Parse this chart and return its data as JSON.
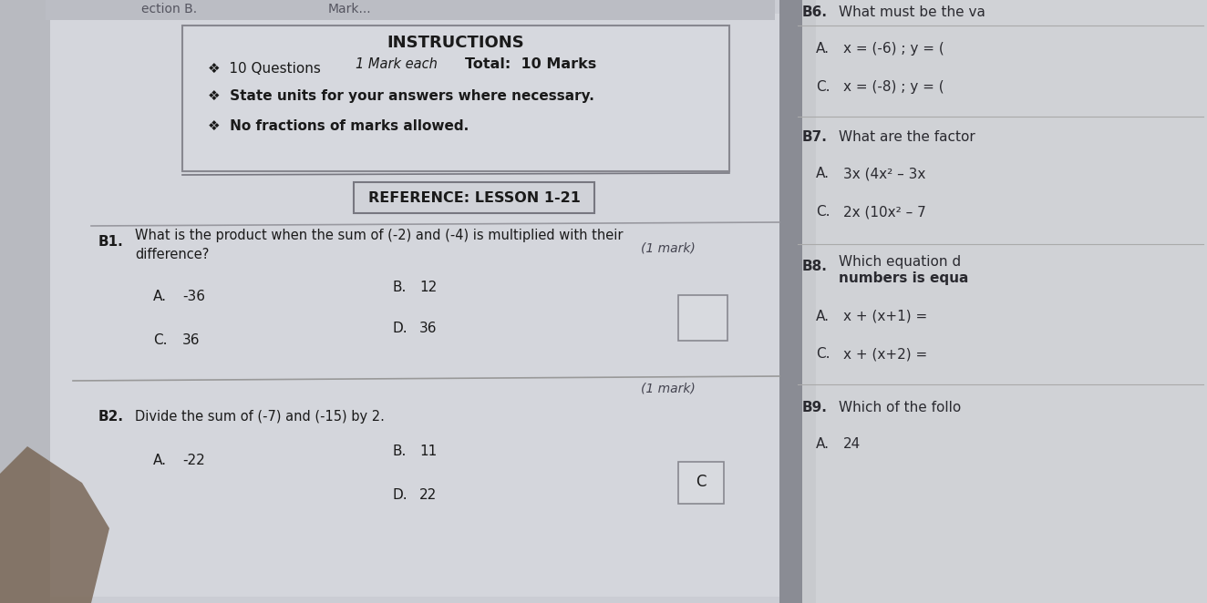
{
  "left_bg": "#c8cad0",
  "right_bg": "#cccecf",
  "spine_color": "#9a9ea8",
  "page_left_color": "#d8dadf",
  "page_right_color": "#d0d2d4",
  "title": "INSTRUCTIONS",
  "ref_label": "REFERENCE: LESSON 1-21",
  "b1_label": "B1.",
  "b1_q1": "What is the product when the sum of (-2) and (-4) is multiplied with their",
  "b1_q2": "difference?",
  "b1_mark": "(1 mark)",
  "b2_label": "B2.",
  "b2_q": "Divide the sum of (-7) and (-15) by 2.",
  "b2_mark": "(1 mark)",
  "section_label": "ection B.",
  "marks_label": "Mark...",
  "b6_label": "B6.",
  "b6_top": "What must be the va",
  "b6_a_label": "A.",
  "b6_a": "x = (-6) ; y = (",
  "b6_c_label": "C.",
  "b6_c": "x = (-8) ; y = (",
  "b7_label": "B7.",
  "b7_q": "What are the factor",
  "b7_a_label": "A.",
  "b7_a": "3x (4x² – 3x",
  "b7_c_label": "C.",
  "b7_c": "2x (10x² – 7",
  "b8_label": "B8.",
  "b8_q1": "Which equation d",
  "b8_q2": "numbers is equa",
  "b8_a_label": "A.",
  "b8_a": "x + (x+1) =",
  "b8_c_label": "C.",
  "b8_c": "x + (x+2) =",
  "b9_label": "B9.",
  "b9_q": "Which of the follo",
  "b9_a_label": "A.",
  "b9_a": "24",
  "answer_c": "C"
}
